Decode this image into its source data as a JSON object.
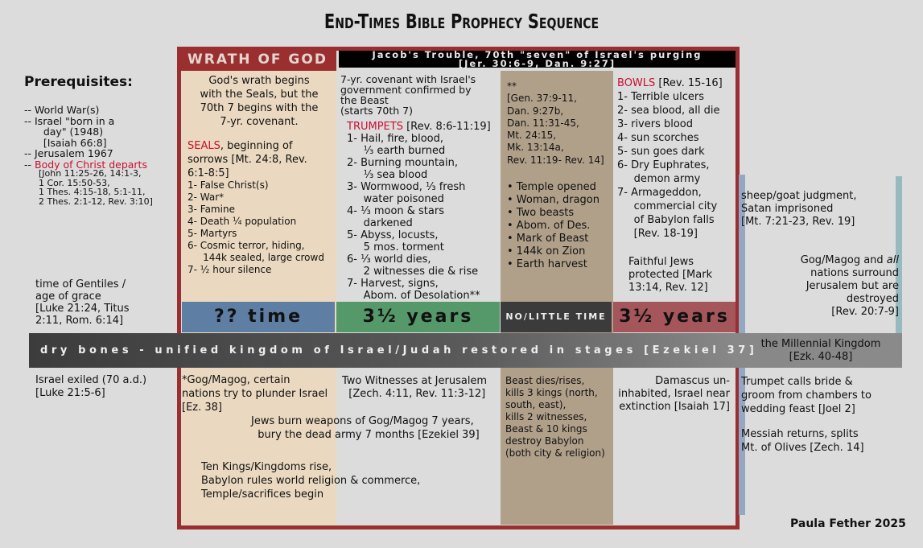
{
  "title": "End-Times Bible Prophecy Sequence",
  "header": {
    "wrath": "WRATH OF GOD",
    "jacob_line1": "Jacob's Trouble, 70th \"seven\" of Israel's purging",
    "jacob_line2": "[Jer. 30:6-9, Dan. 9:27]"
  },
  "colors": {
    "frame": "#9b2f2f",
    "col1": "#ead9c0",
    "col3": "#b0a08a",
    "heading_red": "#c8102e",
    "bar_blue": "#5f7ea3",
    "bar_green": "#55986a",
    "bar_dark": "#3b3b3b",
    "bar_red": "#a5565a"
  },
  "time_bars": [
    "?? time",
    "3½ years",
    "NO/LITTLE TIME",
    "3½ years"
  ],
  "dry_bones": "dry bones - unified kingdom of Israel/Judah restored in stages [Ezekiel 37]",
  "millennial": [
    "the Millennial Kingdom",
    "[Ezk. 40-48]"
  ],
  "blocks": {
    "prereqTitle": [
      "Prerequisites:"
    ],
    "prereq": [
      "-- World War(s)",
      "-- Israel \"born in a",
      "      day\" (1948)",
      "      [Isaiah 66:8]",
      "-- Jerusalem 1967",
      {
        "pre": "-- ",
        "red": "Body of Christ departs"
      }
    ],
    "prereqRefs": [
      "[John 11:25-26, 14:1-3,",
      "1 Cor. 15:50-53,",
      "1 Thes. 4:15-18, 5:1-11,",
      "2 Thes. 2:1-12, Rev. 3:10]"
    ],
    "gentiles": [
      "time of Gentiles /",
      "age of grace",
      "[Luke 21:24, Titus",
      "2:11, Rom. 6:14]"
    ],
    "exiled": [
      "Israel exiled (70 a.d.)",
      "[Luke 21:5-6]"
    ],
    "wrathDesc": [
      "God's wrath begins",
      "with the Seals, but the",
      "70th 7 begins with the",
      "7-yr. covenant."
    ],
    "seals": [
      {
        "red": "SEALS",
        "text": ", beginning of"
      },
      "sorrows [Mt. 24:8, Rev.",
      "6:1-8:5]"
    ],
    "sealsList": [
      "1- False Christ(s)",
      "2- War*",
      "3- Famine",
      "4- Death ¼ population",
      "5- Martyrs",
      "6- Cosmic terror, hiding,",
      "     144k sealed, large crowd",
      "7- ½ hour silence"
    ],
    "covenant": [
      "7-yr. covenant with Israel's",
      "government confirmed by",
      "the Beast",
      "(starts 70th 7)"
    ],
    "trumpets": [
      {
        "red": "TRUMPETS",
        "text": " [Rev. 8:6-11:19]"
      },
      "1- Hail, fire, blood,",
      "     ⅓ earth burned",
      "2- Burning mountain,",
      "     ⅓ sea blood",
      "3- Wormwood, ⅓ fresh",
      "     water poisoned",
      "4- ⅓ moon & stars",
      "     darkened",
      "5- Abyss, locusts,",
      "     5 mos. torment",
      "6- ⅓ world dies,",
      "     2 witnesses die & rise",
      "7- Harvest, signs,",
      "     Abom. of Desolation**"
    ],
    "col3refs": [
      "**",
      "[Gen. 37:9-11,",
      "Dan. 9:27b,",
      "Dan. 11:31-45,",
      "Mt. 24:15,",
      "Mk. 13:14a,",
      "Rev. 11:19- Rev. 14]"
    ],
    "col3list": [
      "• Temple opened",
      "• Woman, dragon",
      "• Two beasts",
      "• Abom. of Des.",
      "• Mark of Beast",
      "• 144k on Zion",
      "• Earth harvest"
    ],
    "bowls": [
      {
        "red": "BOWLS",
        "text": " [Rev. 15-16]"
      },
      "1- Terrible ulcers",
      "2- sea blood, all die",
      "3- rivers blood",
      "4- sun scorches",
      "5- sun goes dark",
      "6- Dry Euphrates,",
      "     demon army",
      "7- Armageddon,",
      "     commercial city",
      "     of Babylon falls",
      "     [Rev. 18-19]"
    ],
    "faithful": [
      "Faithful Jews",
      "protected [Mark",
      "13:14, Rev. 12]"
    ],
    "sheep": [
      "sheep/goat judgment,",
      "Satan imprisoned",
      "[Mt. 7:21-23, Rev. 19]"
    ],
    "gogall": [
      {
        "text": "Gog/Magog and ",
        "em": "all"
      },
      "nations surround",
      "Jerusalem but are",
      "destroyed",
      "[Rev. 20:7-9]"
    ],
    "gog38": [
      "*Gog/Magog, certain",
      "nations try to plunder Israel",
      "[Ez. 38]"
    ],
    "twoW": [
      "Two Witnesses at Jerusalem",
      "  [Zech. 4:11, Rev. 11:3-12]"
    ],
    "burn": [
      "Jews burn weapons of Gog/Magog 7 years,",
      "  bury the dead army 7 months [Ezekiel 39]"
    ],
    "tenKings": [
      "Ten Kings/Kingdoms rise,",
      "Babylon rules world religion & commerce,",
      "Temple/sacrifices begin"
    ],
    "beast": [
      "Beast dies/rises,",
      "kills 3 kings (north,",
      "south, east),",
      "kills 2 witnesses,",
      "Beast & 10 kings",
      "destroy Babylon",
      "(both city & religion)"
    ],
    "damascus": [
      "Damascus un-",
      "inhabited, Israel near",
      "extinction [Isaiah 17]"
    ],
    "trumpetBride": [
      "Trumpet calls bride &",
      "groom from chambers to",
      "wedding feast [Joel 2]"
    ],
    "messiah": [
      "Messiah returns, splits",
      "Mt. of Olives [Zech. 14]"
    ]
  },
  "credit": "Paula Fether 2025"
}
